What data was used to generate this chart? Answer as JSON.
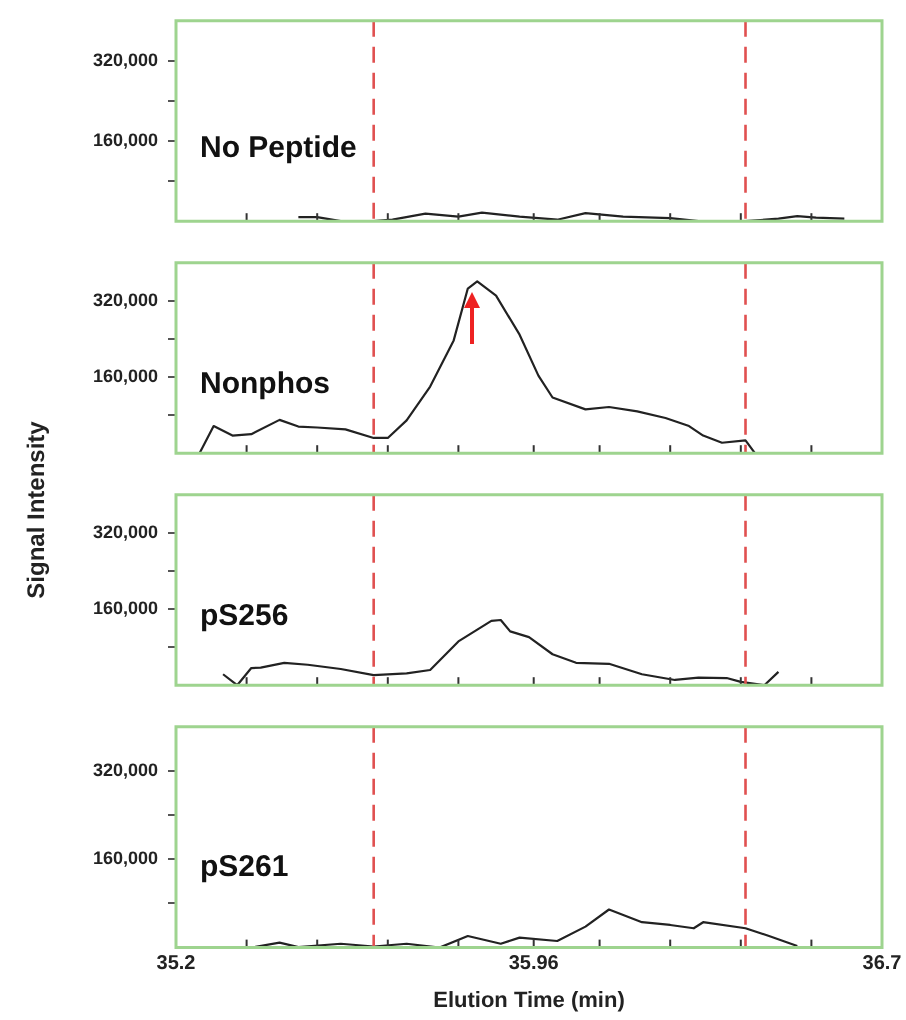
{
  "chart_data": [
    {
      "type": "line",
      "title": "No Peptide",
      "color": "#222222",
      "marker": "none",
      "tick_labels": "y",
      "x": [
        35.46,
        35.5,
        35.55,
        35.62,
        35.66,
        35.73,
        35.8,
        35.85,
        35.93,
        36.01,
        36.07,
        36.15,
        36.25,
        36.31,
        36.41,
        36.48,
        36.52,
        36.56,
        36.62
      ],
      "values": [
        8000,
        8000,
        0,
        0,
        3000,
        15000,
        9000,
        17000,
        9000,
        3000,
        16000,
        9000,
        6000,
        0,
        0,
        5000,
        10000,
        7000,
        5000
      ],
      "xlim": [
        35.2,
        36.7
      ],
      "ylim": [
        0,
        400000
      ],
      "xticks": [
        35.2,
        {
          "value": 35.35,
          "label": null
        },
        {
          "value": 35.5,
          "label": null
        },
        {
          "value": 35.65,
          "label": null
        },
        {
          "value": 35.8,
          "label": null
        },
        35.96,
        {
          "value": 36.1,
          "label": null
        },
        {
          "value": 36.25,
          "label": null
        },
        {
          "value": 36.4,
          "label": null
        },
        {
          "value": 36.55,
          "label": null
        },
        36.7
      ],
      "yticks": [
        {
          "value": 80000,
          "label": null
        },
        {
          "value": 160000,
          "label": "160,000"
        },
        {
          "value": 240000,
          "label": null
        },
        {
          "value": 320000,
          "label": "320,000"
        }
      ],
      "ref_lines": [
        {
          "axis": "x",
          "value": 35.62,
          "color": "#e05050",
          "line_style": "dashed"
        },
        {
          "axis": "x",
          "value": 36.41,
          "color": "#e05050",
          "line_style": "dashed"
        }
      ]
    },
    {
      "type": "line",
      "title": "Nonphos",
      "color": "#222222",
      "marker": "none",
      "tick_labels": "y",
      "x": [
        35.25,
        35.28,
        35.32,
        35.36,
        35.42,
        35.46,
        35.5,
        35.56,
        35.62,
        35.65,
        35.69,
        35.74,
        35.79,
        35.82,
        35.84,
        35.88,
        35.93,
        35.97,
        36.0,
        36.07,
        36.12,
        36.18,
        36.24,
        36.29,
        36.32,
        36.36,
        36.41,
        36.43
      ],
      "values": [
        0,
        57000,
        37000,
        40000,
        70000,
        56000,
        54000,
        50000,
        32000,
        32000,
        69000,
        140000,
        237000,
        346000,
        361000,
        331000,
        249000,
        163000,
        117000,
        92000,
        97000,
        88000,
        74000,
        57000,
        37000,
        22000,
        27000,
        0
      ],
      "xlim": [
        35.2,
        36.7
      ],
      "ylim": [
        0,
        400000
      ],
      "xticks": [
        35.2,
        {
          "value": 35.35,
          "label": null
        },
        {
          "value": 35.5,
          "label": null
        },
        {
          "value": 35.65,
          "label": null
        },
        {
          "value": 35.8,
          "label": null
        },
        35.96,
        {
          "value": 36.1,
          "label": null
        },
        {
          "value": 36.25,
          "label": null
        },
        {
          "value": 36.4,
          "label": null
        },
        {
          "value": 36.55,
          "label": null
        },
        36.7
      ],
      "yticks": [
        {
          "value": 80000,
          "label": null
        },
        {
          "value": 160000,
          "label": "160,000"
        },
        {
          "value": 240000,
          "label": null
        },
        {
          "value": 320000,
          "label": "320,000"
        }
      ],
      "ref_lines": [
        {
          "axis": "x",
          "value": 35.62,
          "color": "#e05050",
          "line_style": "dashed"
        },
        {
          "axis": "x",
          "value": 36.41,
          "color": "#e05050",
          "line_style": "dashed"
        }
      ]
    },
    {
      "type": "line",
      "title": "pS256",
      "ylabel": "Signal Intensity",
      "color": "#222222",
      "marker": "none",
      "tick_labels": "y",
      "x": [
        35.3,
        35.33,
        35.36,
        35.38,
        35.43,
        35.48,
        35.55,
        35.62,
        35.69,
        35.74,
        35.8,
        35.87,
        35.89,
        35.91,
        35.95,
        36.0,
        36.05,
        36.12,
        36.19,
        36.26,
        36.31,
        36.37,
        36.4,
        36.45,
        36.48
      ],
      "values": [
        23000,
        0,
        36000,
        37000,
        47000,
        43000,
        34000,
        21000,
        25000,
        32000,
        92000,
        135000,
        137000,
        113000,
        101000,
        65000,
        47000,
        45000,
        23000,
        11000,
        16000,
        15000,
        7000,
        0,
        28000
      ],
      "xlim": [
        35.2,
        36.7
      ],
      "ylim": [
        0,
        400000
      ],
      "xticks": [
        35.2,
        {
          "value": 35.35,
          "label": null
        },
        {
          "value": 35.5,
          "label": null
        },
        {
          "value": 35.65,
          "label": null
        },
        {
          "value": 35.8,
          "label": null
        },
        35.96,
        {
          "value": 36.1,
          "label": null
        },
        {
          "value": 36.25,
          "label": null
        },
        {
          "value": 36.4,
          "label": null
        },
        {
          "value": 36.55,
          "label": null
        },
        36.7
      ],
      "yticks": [
        {
          "value": 80000,
          "label": null
        },
        {
          "value": 160000,
          "label": "160,000"
        },
        {
          "value": 240000,
          "label": null
        },
        {
          "value": 320000,
          "label": "320,000"
        }
      ],
      "ref_lines": [
        {
          "axis": "x",
          "value": 35.62,
          "color": "#e05050",
          "line_style": "dashed"
        },
        {
          "axis": "x",
          "value": 36.41,
          "color": "#e05050",
          "line_style": "dashed"
        }
      ]
    },
    {
      "type": "line",
      "title": "pS261",
      "xlabel": "Elution Time (min)",
      "color": "#222222",
      "marker": "none",
      "x": [
        35.36,
        35.42,
        35.46,
        35.55,
        35.62,
        35.69,
        35.76,
        35.82,
        35.89,
        35.93,
        36.01,
        36.07,
        36.12,
        36.19,
        36.25,
        36.3,
        36.32,
        36.41,
        36.46,
        36.52
      ],
      "values": [
        0,
        9000,
        1000,
        7000,
        2000,
        7000,
        0,
        21000,
        7000,
        18000,
        12000,
        38000,
        69000,
        46000,
        41000,
        35000,
        46000,
        35000,
        21000,
        3000
      ],
      "xlim": [
        35.2,
        36.7
      ],
      "ylim": [
        0,
        400000
      ],
      "xticks": [
        35.2,
        {
          "value": 35.35,
          "label": null
        },
        {
          "value": 35.5,
          "label": null
        },
        {
          "value": 35.65,
          "label": null
        },
        {
          "value": 35.8,
          "label": null
        },
        35.96,
        {
          "value": 36.1,
          "label": null
        },
        {
          "value": 36.25,
          "label": null
        },
        {
          "value": 36.4,
          "label": null
        },
        {
          "value": 36.55,
          "label": null
        },
        36.7
      ],
      "yticks": [
        {
          "value": 80000,
          "label": null
        },
        {
          "value": 160000,
          "label": "160,000"
        },
        {
          "value": 240000,
          "label": null
        },
        {
          "value": 320000,
          "label": "320,000"
        }
      ],
      "ref_lines": [
        {
          "axis": "x",
          "value": 35.62,
          "color": "#e05050",
          "line_style": "dashed"
        },
        {
          "axis": "x",
          "value": 36.41,
          "color": "#e05050",
          "line_style": "dashed"
        }
      ]
    }
  ]
}
